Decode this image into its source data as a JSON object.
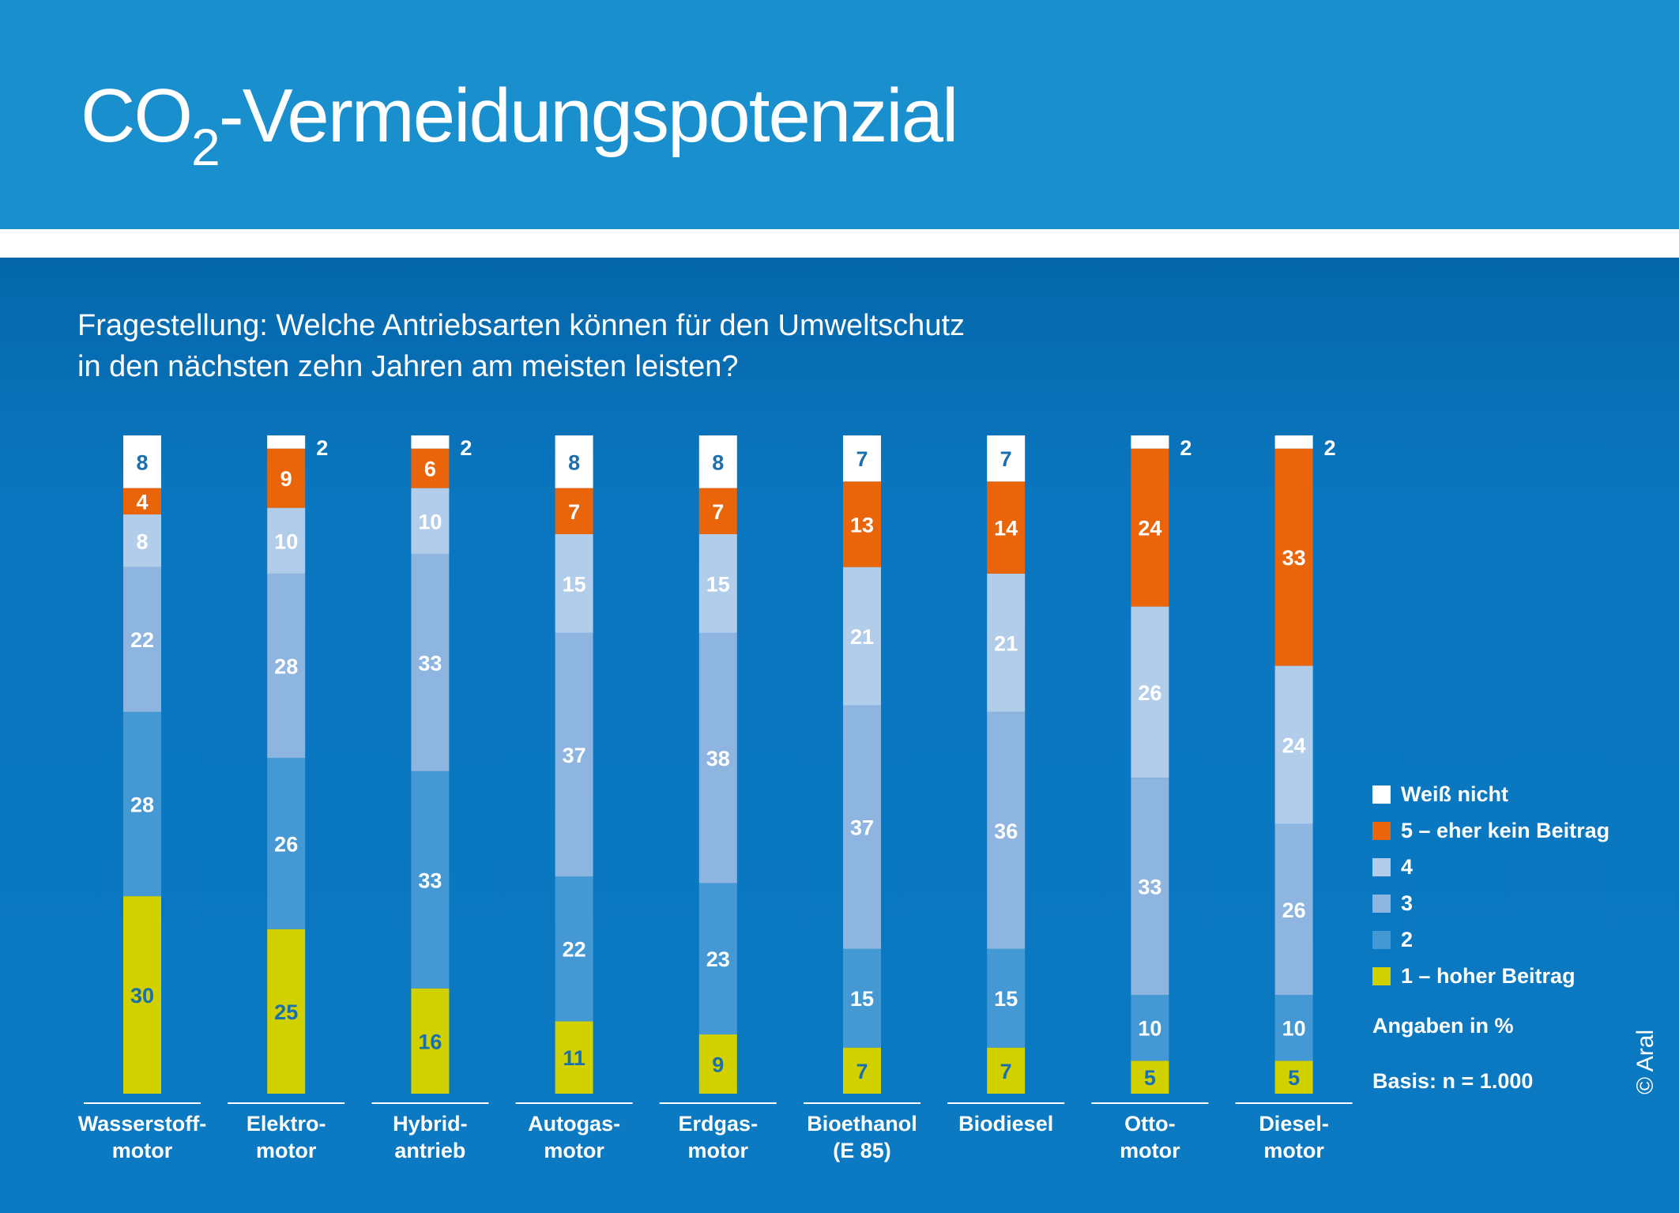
{
  "header": {
    "title_prefix": "CO",
    "title_subscript": "2",
    "title_suffix": "-Vermeidungspotenzial"
  },
  "question": {
    "line1": "Fragestellung: Welche Antriebsarten können für den Umweltschutz",
    "line2": "in den nächsten zehn Jahren am meisten leisten?"
  },
  "legend": {
    "items": [
      {
        "label": "Weiß nicht",
        "color": "#ffffff"
      },
      {
        "label": "5 – eher kein Beitrag",
        "color": "#ea6409"
      },
      {
        "label": "4",
        "color": "#b2cdea"
      },
      {
        "label": "3",
        "color": "#8db5e0"
      },
      {
        "label": "2",
        "color": "#4499d4"
      },
      {
        "label": "1 – hoher Beitrag",
        "color": "#d1d100"
      }
    ],
    "unit_note": "Angaben in %",
    "basis_note": "Basis: n = 1.000"
  },
  "copyright": "© Aral",
  "chart_data": {
    "type": "bar",
    "stacked": true,
    "categories": [
      [
        "Wasserstoff-",
        "motor"
      ],
      [
        "Elektro-",
        "motor"
      ],
      [
        "Hybrid-",
        "antrieb"
      ],
      [
        "Autogas-",
        "motor"
      ],
      [
        "Erdgas-",
        "motor"
      ],
      [
        "Bioethanol",
        "(E 85)"
      ],
      [
        "Biodiesel"
      ],
      [
        "Otto-",
        "motor"
      ],
      [
        "Diesel-",
        "motor"
      ]
    ],
    "series": [
      {
        "name": "1 – hoher Beitrag",
        "color": "#d1d100",
        "label_color": "#1a6fae",
        "values": [
          30,
          25,
          16,
          11,
          9,
          7,
          7,
          5,
          5
        ]
      },
      {
        "name": "2",
        "color": "#4499d4",
        "label_color": "#ffffff",
        "values": [
          28,
          26,
          33,
          22,
          23,
          15,
          15,
          10,
          10
        ]
      },
      {
        "name": "3",
        "color": "#8db5e0",
        "label_color": "#ffffff",
        "values": [
          22,
          28,
          33,
          37,
          38,
          37,
          36,
          33,
          26
        ]
      },
      {
        "name": "4",
        "color": "#b2cdea",
        "label_color": "#ffffff",
        "values": [
          8,
          10,
          10,
          15,
          15,
          21,
          21,
          26,
          24
        ]
      },
      {
        "name": "5 – eher kein Beitrag",
        "color": "#ea6409",
        "label_color": "#ffffff",
        "values": [
          4,
          9,
          6,
          7,
          7,
          13,
          14,
          24,
          33
        ]
      },
      {
        "name": "Weiß nicht",
        "color": "#ffffff",
        "label_color": "#1a6fae",
        "values": [
          8,
          2,
          2,
          8,
          8,
          7,
          7,
          2,
          2
        ]
      }
    ],
    "ylim": [
      0,
      100
    ],
    "grid": false,
    "legend_position": "right"
  }
}
